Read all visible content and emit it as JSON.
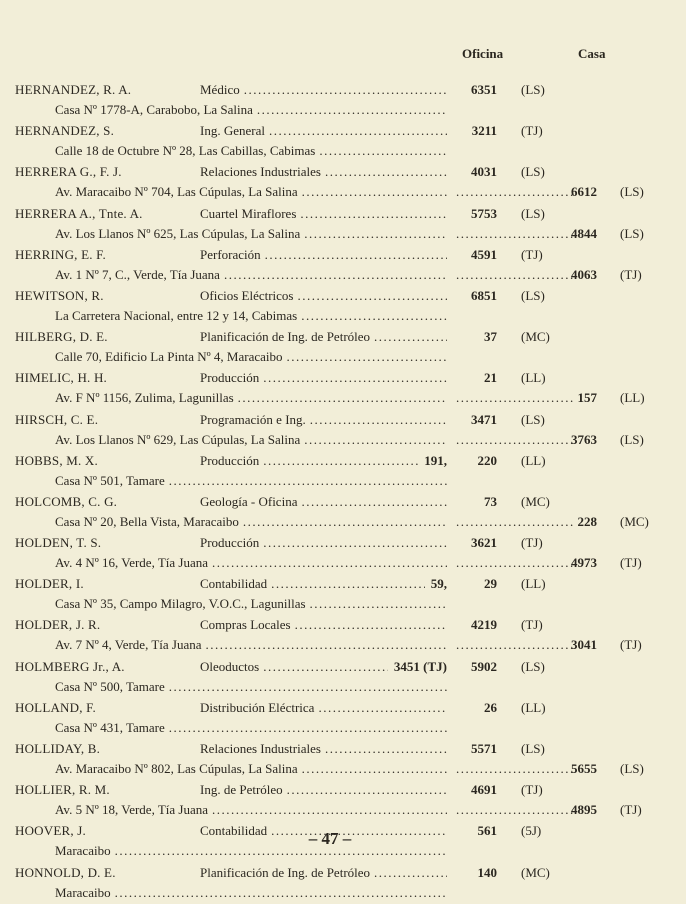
{
  "header": {
    "oficina": "Oficina",
    "casa": "Casa"
  },
  "entries": [
    {
      "name": "HERNANDEZ, R. A.",
      "dept": "Médico",
      "extra": "",
      "office": "6351",
      "office_code": "(LS)",
      "address": "Casa Nº 1778-A, Carabobo, La Salina",
      "home": "",
      "home_code": ""
    },
    {
      "name": "HERNANDEZ, S.",
      "dept": "Ing. General",
      "extra": "",
      "office": "3211",
      "office_code": "(TJ)",
      "address": "Calle 18 de Octubre Nº 28, Las Cabillas, Cabimas",
      "home": "",
      "home_code": ""
    },
    {
      "name": "HERRERA G., F. J.",
      "dept": "Relaciones Industriales",
      "extra": "",
      "office": "4031",
      "office_code": "(LS)",
      "address": "Av. Maracaibo Nº 704, Las Cúpulas, La Salina",
      "home": "6612",
      "home_code": "(LS)"
    },
    {
      "name": "HERRERA A., Tnte. A.",
      "dept": "Cuartel Miraflores",
      "extra": "",
      "office": "5753",
      "office_code": "(LS)",
      "address": "Av. Los Llanos Nº 625, Las Cúpulas, La Salina",
      "home": "4844",
      "home_code": "(LS)"
    },
    {
      "name": "HERRING, E. F.",
      "dept": "Perforación",
      "extra": "",
      "office": "4591",
      "office_code": "(TJ)",
      "address": "Av. 1 Nº 7, C., Verde, Tía Juana",
      "home": "4063",
      "home_code": "(TJ)"
    },
    {
      "name": "HEWITSON, R.",
      "dept": "Oficios Eléctricos",
      "extra": "",
      "office": "6851",
      "office_code": "(LS)",
      "address": "La Carretera Nacional, entre 12 y 14, Cabimas",
      "home": "",
      "home_code": ""
    },
    {
      "name": "HILBERG, D. E.",
      "dept": "Planificación de Ing. de Petróleo",
      "extra": "",
      "office": "37",
      "office_code": "(MC)",
      "address": "Calle 70, Edificio La Pinta Nº 4, Maracaibo",
      "home": "",
      "home_code": ""
    },
    {
      "name": "HIMELIC, H. H.",
      "dept": "Producción",
      "extra": "",
      "office": "21",
      "office_code": "(LL)",
      "address": "Av. F Nº 1156, Zulima, Lagunillas",
      "home": "157",
      "home_code": "(LL)"
    },
    {
      "name": "HIRSCH, C. E.",
      "dept": "Programación e Ing.",
      "extra": "",
      "office": "3471",
      "office_code": "(LS)",
      "address": "Av. Los Llanos Nº 629, Las Cúpulas, La Salina",
      "home": "3763",
      "home_code": "(LS)"
    },
    {
      "name": "HOBBS, M. X.",
      "dept": "Producción",
      "extra": "191,",
      "office": "220",
      "office_code": "(LL)",
      "address": "Casa Nº 501, Tamare",
      "home": "",
      "home_code": ""
    },
    {
      "name": "HOLCOMB, C. G.",
      "dept": "Geología - Oficina",
      "extra": "",
      "office": "73",
      "office_code": "(MC)",
      "address": "Casa Nº 20, Bella Vista, Maracaibo",
      "home": "228",
      "home_code": "(MC)"
    },
    {
      "name": "HOLDEN, T. S.",
      "dept": "Producción",
      "extra": "",
      "office": "3621",
      "office_code": "(TJ)",
      "address": "Av. 4 Nº 16, Verde, Tía Juana",
      "home": "4973",
      "home_code": "(TJ)"
    },
    {
      "name": "HOLDER, I.",
      "dept": "Contabilidad",
      "extra": "59,",
      "office": "29",
      "office_code": "(LL)",
      "address": "Casa Nº 35, Campo Milagro, V.O.C., Lagunillas",
      "home": "",
      "home_code": ""
    },
    {
      "name": "HOLDER, J. R.",
      "dept": "Compras Locales",
      "extra": "",
      "office": "4219",
      "office_code": "(TJ)",
      "address": "Av. 7 Nº 4, Verde, Tía Juana",
      "home": "3041",
      "home_code": "(TJ)"
    },
    {
      "name": "HOLMBERG Jr., A.",
      "dept": "Oleoductos",
      "extra": "3451 (TJ)",
      "office": "5902",
      "office_code": "(LS)",
      "address": "Casa Nº 500, Tamare",
      "home": "",
      "home_code": ""
    },
    {
      "name": "HOLLAND, F.",
      "dept": "Distribución Eléctrica",
      "extra": "",
      "office": "26",
      "office_code": "(LL)",
      "address": "Casa Nº 431, Tamare",
      "home": "",
      "home_code": ""
    },
    {
      "name": "HOLLIDAY, B.",
      "dept": "Relaciones Industriales",
      "extra": "",
      "office": "5571",
      "office_code": "(LS)",
      "address": "Av. Maracaibo Nº 802, Las Cúpulas, La Salina",
      "home": "5655",
      "home_code": "(LS)"
    },
    {
      "name": "HOLLIER, R. M.",
      "dept": "Ing. de Petróleo",
      "extra": "",
      "office": "4691",
      "office_code": "(TJ)",
      "address": "Av. 5 Nº 18, Verde, Tía Juana",
      "home": "4895",
      "home_code": "(TJ)"
    },
    {
      "name": "HOOVER, J.",
      "dept": "Contabilidad",
      "extra": "",
      "office": "561",
      "office_code": "(5J)",
      "address": "Maracaibo",
      "home": "",
      "home_code": ""
    },
    {
      "name": "HONNOLD, D. E.",
      "dept": "Planificación de Ing. de Petróleo",
      "extra": "",
      "office": "140",
      "office_code": "(MC)",
      "address": "Maracaibo",
      "home": "",
      "home_code": ""
    }
  ],
  "page_number": "– 47 –"
}
